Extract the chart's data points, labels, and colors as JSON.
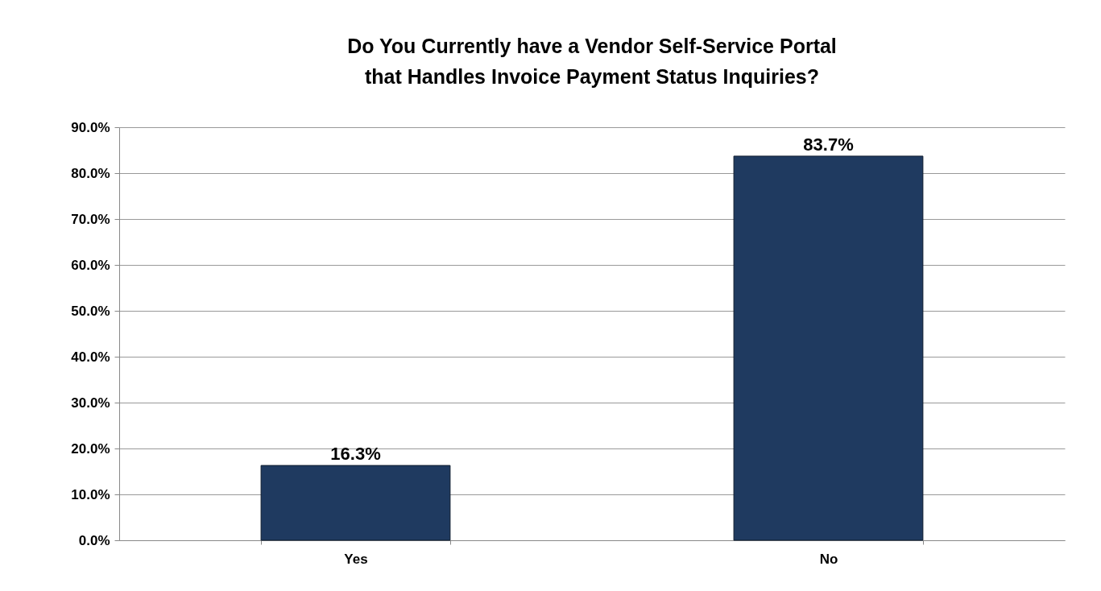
{
  "chart_data": {
    "type": "bar",
    "title": [
      "Do You Currently have a Vendor Self-Service Portal",
      "that Handles Invoice Payment Status Inquiries?"
    ],
    "categories": [
      "Yes",
      "No"
    ],
    "values": [
      16.3,
      83.7
    ],
    "value_labels": [
      "16.3%",
      "83.7%"
    ],
    "color": "#1f3a60",
    "ylim": [
      0,
      90
    ],
    "yticks": [
      {
        "value": 0,
        "label": "0.0%"
      },
      {
        "value": 10,
        "label": "10.0%"
      },
      {
        "value": 20,
        "label": "20.0%"
      },
      {
        "value": 30,
        "label": "30.0%"
      },
      {
        "value": 40,
        "label": "40.0%"
      },
      {
        "value": 50,
        "label": "50.0%"
      },
      {
        "value": 60,
        "label": "60.0%"
      },
      {
        "value": 70,
        "label": "70.0%"
      },
      {
        "value": 80,
        "label": "80.0%"
      },
      {
        "value": 90,
        "label": "90.0%"
      }
    ],
    "grid": "y"
  }
}
